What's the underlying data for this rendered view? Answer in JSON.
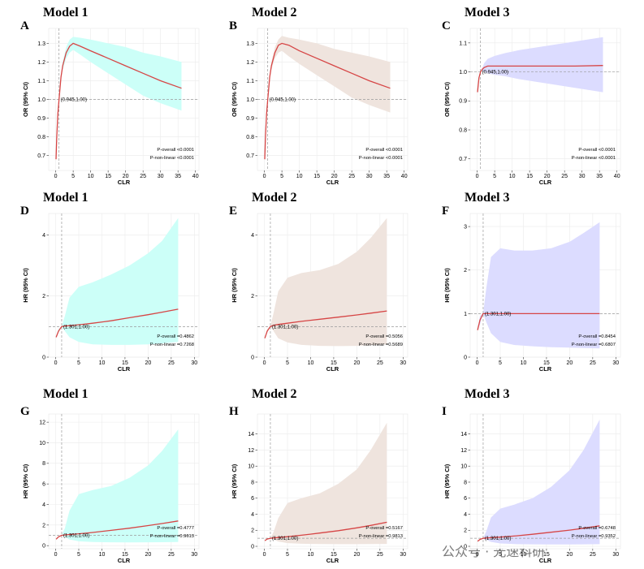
{
  "figure": {
    "watermark": {
      "text": "公众号 · 光速科研"
    }
  },
  "chart_data": [
    {
      "id": "A",
      "type": "line",
      "title": "Model 1",
      "xlabel": "CLR",
      "ylabel": "OR (95% CI)",
      "xlim": [
        -2,
        41
      ],
      "ylim": [
        0.62,
        1.38
      ],
      "xticks": [
        0,
        5,
        10,
        15,
        20,
        25,
        30,
        35,
        40
      ],
      "yticks": [
        0.7,
        0.8,
        0.9,
        1.0,
        1.1,
        1.2,
        1.3
      ],
      "ytick_labels": [
        "0.7",
        "0.8",
        "0.9",
        "1.0",
        "1.1",
        "1.2",
        "1.3"
      ],
      "ref_x": 0.945,
      "ref_y": 1.0,
      "ref_label": "(0.945,1.00)",
      "stats": [
        "P-overall <0.0001",
        "P-non-linear <0.0001"
      ],
      "fill_color": "#ccfff8",
      "line_color": "#d64545",
      "x": [
        0.1,
        0.3,
        0.6,
        0.945,
        1.5,
        2,
        3,
        4,
        5,
        7,
        10,
        15,
        20,
        25,
        30,
        36
      ],
      "y": [
        0.68,
        0.8,
        0.92,
        1.0,
        1.12,
        1.18,
        1.25,
        1.285,
        1.3,
        1.285,
        1.26,
        1.22,
        1.18,
        1.14,
        1.1,
        1.06
      ],
      "lower": [
        0.68,
        0.8,
        0.92,
        1.0,
        1.11,
        1.16,
        1.22,
        1.25,
        1.265,
        1.24,
        1.2,
        1.14,
        1.08,
        1.02,
        0.98,
        0.94
      ],
      "upper": [
        0.68,
        0.8,
        0.92,
        1.0,
        1.13,
        1.2,
        1.28,
        1.32,
        1.335,
        1.33,
        1.32,
        1.3,
        1.28,
        1.25,
        1.23,
        1.2
      ]
    },
    {
      "id": "B",
      "type": "line",
      "title": "Model 2",
      "xlabel": "CLR",
      "ylabel": "OR (95% CI)",
      "xlim": [
        -2,
        41
      ],
      "ylim": [
        0.62,
        1.38
      ],
      "xticks": [
        0,
        5,
        10,
        15,
        20,
        25,
        30,
        35,
        40
      ],
      "yticks": [
        0.7,
        0.8,
        0.9,
        1.0,
        1.1,
        1.2,
        1.3
      ],
      "ytick_labels": [
        "0.7",
        "0.8",
        "0.9",
        "1.0",
        "1.1",
        "1.2",
        "1.3"
      ],
      "ref_x": 0.945,
      "ref_y": 1.0,
      "ref_label": "(0.945,1.00)",
      "stats": [
        "P-overall <0.0001",
        "P-non-linear <0.0001"
      ],
      "fill_color": "#efe4de",
      "line_color": "#d64545",
      "x": [
        0.1,
        0.3,
        0.6,
        0.945,
        1.5,
        2,
        3,
        4,
        5,
        7,
        10,
        15,
        20,
        25,
        30,
        36
      ],
      "y": [
        0.68,
        0.8,
        0.92,
        1.0,
        1.12,
        1.18,
        1.25,
        1.29,
        1.3,
        1.29,
        1.26,
        1.22,
        1.18,
        1.14,
        1.1,
        1.06
      ],
      "lower": [
        0.68,
        0.8,
        0.92,
        1.0,
        1.11,
        1.16,
        1.22,
        1.25,
        1.26,
        1.23,
        1.19,
        1.13,
        1.07,
        1.01,
        0.97,
        0.93
      ],
      "upper": [
        0.68,
        0.8,
        0.92,
        1.0,
        1.13,
        1.2,
        1.28,
        1.32,
        1.34,
        1.33,
        1.32,
        1.3,
        1.27,
        1.25,
        1.23,
        1.2
      ]
    },
    {
      "id": "C",
      "type": "line",
      "title": "Model 3",
      "xlabel": "CLR",
      "ylabel": "OR (95% CI)",
      "xlim": [
        -2,
        41
      ],
      "ylim": [
        0.66,
        1.15
      ],
      "xticks": [
        0,
        5,
        10,
        15,
        20,
        25,
        30,
        35,
        40
      ],
      "yticks": [
        0.7,
        0.8,
        0.9,
        1.0,
        1.1
      ],
      "ytick_labels": [
        "0.7",
        "0.8",
        "0.9",
        "1.0",
        "1.1"
      ],
      "ref_x": 0.945,
      "ref_y": 1.0,
      "ref_label": "(0.945,1.00)",
      "stats": [
        "P-overall <0.0001",
        "P-non-linear <0.0001"
      ],
      "fill_color": "#dcdcff",
      "line_color": "#d64545",
      "x": [
        0.1,
        0.5,
        0.945,
        1.5,
        2,
        3,
        5,
        8,
        12,
        20,
        28,
        36
      ],
      "y": [
        0.93,
        0.98,
        1.0,
        1.01,
        1.015,
        1.02,
        1.02,
        1.02,
        1.02,
        1.02,
        1.02,
        1.022
      ],
      "lower": [
        0.93,
        0.975,
        1.0,
        1.005,
        1.0,
        0.995,
        0.99,
        0.985,
        0.975,
        0.96,
        0.945,
        0.93
      ],
      "upper": [
        0.93,
        0.985,
        1.0,
        1.015,
        1.03,
        1.045,
        1.055,
        1.065,
        1.075,
        1.09,
        1.105,
        1.12
      ]
    },
    {
      "id": "D",
      "type": "line",
      "title": "Model 1",
      "xlabel": "CLR",
      "ylabel": "HR (95% CI)",
      "xlim": [
        -1.5,
        31
      ],
      "ylim": [
        0,
        4.7
      ],
      "xticks": [
        0,
        5,
        10,
        15,
        20,
        25,
        30
      ],
      "yticks": [
        0,
        2,
        4
      ],
      "ytick_labels": [
        "0",
        "2",
        "4"
      ],
      "ref_x": 1.301,
      "ref_y": 1.0,
      "ref_label": "(1.301,1.00)",
      "stats": [
        "P-overall =0.4862",
        "P-non-linear =0.7268"
      ],
      "fill_color": "#ccfff8",
      "line_color": "#d64545",
      "x": [
        0.1,
        0.6,
        1.301,
        2,
        3,
        5,
        8,
        12,
        16,
        20,
        23,
        26.5
      ],
      "y": [
        0.65,
        0.85,
        1.0,
        1.02,
        1.03,
        1.06,
        1.11,
        1.19,
        1.29,
        1.39,
        1.47,
        1.57
      ],
      "lower": [
        0.65,
        0.8,
        1.0,
        0.85,
        0.65,
        0.5,
        0.42,
        0.4,
        0.4,
        0.42,
        0.45,
        0.5
      ],
      "upper": [
        0.65,
        0.92,
        1.0,
        1.35,
        1.95,
        2.3,
        2.45,
        2.7,
        3.0,
        3.4,
        3.8,
        4.55
      ]
    },
    {
      "id": "E",
      "type": "line",
      "title": "Model 2",
      "xlabel": "CLR",
      "ylabel": "HR (95% CI)",
      "xlim": [
        -1.5,
        31
      ],
      "ylim": [
        0,
        4.7
      ],
      "xticks": [
        0,
        5,
        10,
        15,
        20,
        25,
        30
      ],
      "yticks": [
        0,
        2,
        4
      ],
      "ytick_labels": [
        "0",
        "2",
        "4"
      ],
      "ref_x": 1.301,
      "ref_y": 1.0,
      "ref_label": "(1.301,1.00)",
      "stats": [
        "P-overall =0.5056",
        "P-non-linear =0.5689"
      ],
      "fill_color": "#efe4de",
      "line_color": "#d64545",
      "x": [
        0.1,
        0.6,
        1.301,
        2,
        3,
        5,
        8,
        12,
        16,
        20,
        23,
        26.5
      ],
      "y": [
        0.62,
        0.85,
        1.0,
        1.04,
        1.07,
        1.11,
        1.17,
        1.24,
        1.31,
        1.38,
        1.44,
        1.51
      ],
      "lower": [
        0.62,
        0.8,
        1.0,
        0.85,
        0.62,
        0.48,
        0.4,
        0.37,
        0.36,
        0.37,
        0.39,
        0.42
      ],
      "upper": [
        0.62,
        0.92,
        1.0,
        1.45,
        2.15,
        2.6,
        2.75,
        2.85,
        3.05,
        3.45,
        3.9,
        4.55
      ]
    },
    {
      "id": "F",
      "type": "line",
      "title": "Model 3",
      "xlabel": "CLR",
      "ylabel": "HR (95% CI)",
      "xlim": [
        -1.5,
        31
      ],
      "ylim": [
        0,
        3.3
      ],
      "xticks": [
        0,
        5,
        10,
        15,
        20,
        25,
        30
      ],
      "yticks": [
        0,
        1,
        2,
        3
      ],
      "ytick_labels": [
        "0",
        "1",
        "2",
        "3"
      ],
      "ref_x": 1.301,
      "ref_y": 1.0,
      "ref_label": "(1.301,1.00)",
      "stats": [
        "P-overall =0.8454",
        "P-non-linear =0.6807"
      ],
      "fill_color": "#dcdcff",
      "line_color": "#d64545",
      "x": [
        0.1,
        0.6,
        1.301,
        2,
        3,
        5,
        8,
        12,
        16,
        20,
        23,
        26.5
      ],
      "y": [
        0.62,
        0.85,
        1.0,
        1.0,
        1.0,
        1.0,
        1.0,
        1.0,
        1.0,
        1.0,
        1.0,
        1.0
      ],
      "lower": [
        0.62,
        0.75,
        1.0,
        0.8,
        0.55,
        0.35,
        0.28,
        0.25,
        0.23,
        0.22,
        0.21,
        0.2
      ],
      "upper": [
        0.62,
        0.95,
        1.0,
        1.6,
        2.3,
        2.5,
        2.45,
        2.45,
        2.5,
        2.65,
        2.85,
        3.1
      ]
    },
    {
      "id": "G",
      "type": "line",
      "title": "Model 1",
      "xlabel": "CLR",
      "ylabel": "HR (95% CI)",
      "xlim": [
        -1.5,
        31
      ],
      "ylim": [
        -0.3,
        12.8
      ],
      "xticks": [
        0,
        5,
        10,
        15,
        20,
        25,
        30
      ],
      "yticks": [
        0,
        2,
        4,
        6,
        8,
        10,
        12
      ],
      "ytick_labels": [
        "0",
        "2",
        "4",
        "6",
        "8",
        "10",
        "12"
      ],
      "ref_x": 1.301,
      "ref_y": 1.0,
      "ref_label": "(1.301,1.00)",
      "stats": [
        "P-overall =0.4777",
        "P-non-linear =0.9613"
      ],
      "fill_color": "#ccfff8",
      "line_color": "#d64545",
      "x": [
        0.1,
        0.6,
        1.301,
        2,
        3,
        5,
        8,
        12,
        16,
        20,
        23,
        26.5
      ],
      "y": [
        0.62,
        0.85,
        1.0,
        1.04,
        1.08,
        1.15,
        1.28,
        1.48,
        1.7,
        1.95,
        2.15,
        2.4
      ],
      "lower": [
        0.62,
        0.8,
        1.0,
        0.85,
        0.6,
        0.42,
        0.35,
        0.32,
        0.31,
        0.32,
        0.33,
        0.35
      ],
      "upper": [
        0.62,
        0.92,
        1.0,
        1.7,
        3.4,
        5.0,
        5.4,
        5.8,
        6.6,
        7.8,
        9.2,
        11.3
      ]
    },
    {
      "id": "H",
      "type": "line",
      "title": "Model 2",
      "xlabel": "CLR",
      "ylabel": "HR (95% CI)",
      "xlim": [
        -1.5,
        31
      ],
      "ylim": [
        -0.3,
        16.5
      ],
      "xticks": [
        0,
        5,
        10,
        15,
        20,
        25,
        30
      ],
      "yticks": [
        0,
        2,
        4,
        6,
        8,
        10,
        12,
        14
      ],
      "ytick_labels": [
        "0",
        "2",
        "4",
        "6",
        "8",
        "10",
        "12",
        "14"
      ],
      "ref_x": 1.301,
      "ref_y": 1.0,
      "ref_label": "(1.301,1.00)",
      "stats": [
        "P-overall =0.5167",
        "P-non-linear =0.9813"
      ],
      "fill_color": "#efe4de",
      "line_color": "#d64545",
      "x": [
        0.1,
        0.6,
        1.301,
        2,
        3,
        5,
        8,
        12,
        16,
        20,
        23,
        26.5
      ],
      "y": [
        0.7,
        0.9,
        1.0,
        1.05,
        1.1,
        1.2,
        1.38,
        1.65,
        1.95,
        2.3,
        2.6,
        3.0
      ],
      "lower": [
        0.7,
        0.85,
        1.0,
        0.85,
        0.6,
        0.4,
        0.32,
        0.28,
        0.27,
        0.27,
        0.28,
        0.3
      ],
      "upper": [
        0.7,
        0.95,
        1.0,
        1.8,
        3.5,
        5.4,
        6.0,
        6.6,
        7.8,
        9.6,
        12.0,
        15.4
      ]
    },
    {
      "id": "I",
      "type": "line",
      "title": "Model 3",
      "xlabel": "CLR",
      "ylabel": "HR (95% CI)",
      "xlim": [
        -1.5,
        31
      ],
      "ylim": [
        -0.3,
        16.5
      ],
      "xticks": [
        0,
        5,
        10,
        15,
        20,
        25,
        30
      ],
      "yticks": [
        0,
        2,
        4,
        6,
        8,
        10,
        12,
        14
      ],
      "ytick_labels": [
        "0",
        "2",
        "4",
        "6",
        "8",
        "10",
        "12",
        "14"
      ],
      "ref_x": 1.301,
      "ref_y": 1.0,
      "ref_label": "(1.301,1.00)",
      "stats": [
        "P-overall =0.6748",
        "P-non-linear =0.9352"
      ],
      "fill_color": "#dcdcff",
      "line_color": "#d64545",
      "x": [
        0.1,
        0.6,
        1.301,
        2,
        3,
        5,
        8,
        12,
        16,
        20,
        23,
        26.5
      ],
      "y": [
        0.62,
        0.85,
        1.0,
        1.04,
        1.08,
        1.15,
        1.28,
        1.5,
        1.75,
        2.02,
        2.25,
        2.55
      ],
      "lower": [
        0.62,
        0.8,
        1.0,
        0.8,
        0.55,
        0.36,
        0.28,
        0.25,
        0.24,
        0.24,
        0.25,
        0.27
      ],
      "upper": [
        0.62,
        0.92,
        1.0,
        1.9,
        3.6,
        4.7,
        5.2,
        6.0,
        7.4,
        9.5,
        12.0,
        15.8
      ]
    }
  ]
}
